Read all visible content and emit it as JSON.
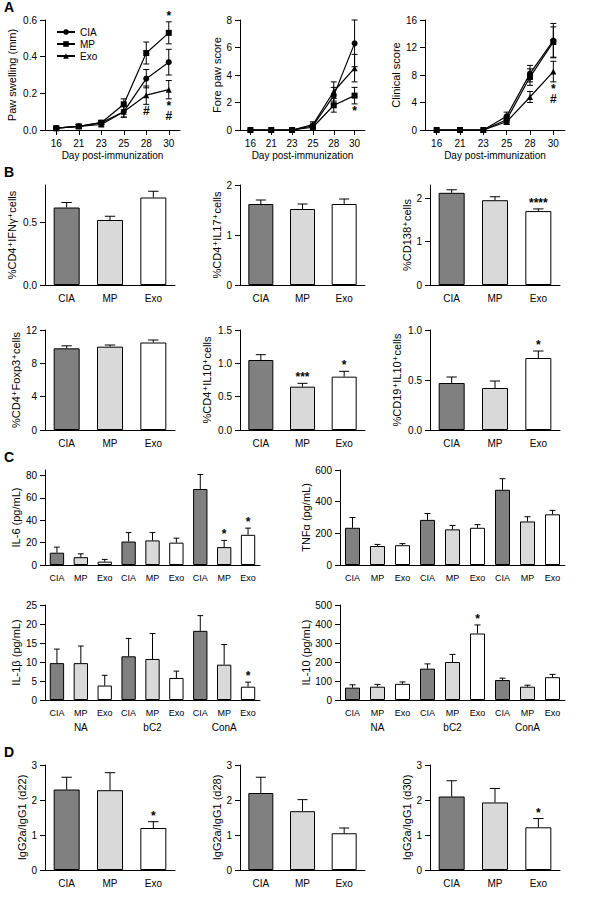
{
  "chart_data": [
    {
      "type": "line",
      "panel": "A",
      "y_label": "Paw swelling (mm)",
      "x_label": "Day post-immunization",
      "categories": [
        "16",
        "21",
        "23",
        "25",
        "28",
        "30"
      ],
      "ylim": [
        0,
        0.6
      ],
      "yticks": [
        {
          "value": 0,
          "label": "0.0"
        },
        0.2,
        0.4,
        0.6
      ],
      "grid": false,
      "legend": "top-left",
      "series": [
        {
          "name": "CIA",
          "color": "#000000",
          "marker": "circle",
          "line_style": "solid",
          "values": [
            0.01,
            0.02,
            0.04,
            0.1,
            0.28,
            0.37
          ],
          "errors": [
            0.005,
            0.01,
            0.01,
            0.03,
            0.05,
            0.07
          ],
          "sig": [
            null,
            null,
            null,
            null,
            null,
            null
          ]
        },
        {
          "name": "MP",
          "color": "#000000",
          "marker": "square",
          "line_style": "solid",
          "values": [
            0.01,
            0.02,
            0.04,
            0.14,
            0.42,
            0.53
          ],
          "errors": [
            0.01,
            0.01,
            0.01,
            0.03,
            0.06,
            0.06
          ],
          "sig": [
            null,
            null,
            null,
            null,
            null,
            "*"
          ]
        },
        {
          "name": "Exo",
          "color": "#000000",
          "marker": "triangle",
          "line_style": "solid",
          "values": [
            0.01,
            0.02,
            0.03,
            0.1,
            0.19,
            0.22
          ],
          "errors": [
            0.005,
            0.01,
            0.01,
            0.03,
            0.05,
            0.05
          ],
          "sig": [
            null,
            null,
            null,
            null,
            "#",
            [
              "*",
              "#"
            ]
          ]
        }
      ]
    },
    {
      "type": "line",
      "y_label": "Fore paw score",
      "x_label": "Day post-immunization",
      "categories": [
        "16",
        "21",
        "23",
        "25",
        "28",
        "30"
      ],
      "ylim": [
        0,
        8
      ],
      "yticks": [
        0,
        2,
        4,
        6,
        8
      ],
      "grid": false,
      "series": [
        {
          "name": "CIA",
          "color": "#000000",
          "marker": "circle",
          "line_style": "solid",
          "values": [
            0,
            0,
            0,
            0.3,
            2.5,
            6.3
          ],
          "errors": [
            0,
            0,
            0,
            0.2,
            0.6,
            1.7
          ],
          "sig": [
            null,
            null,
            null,
            null,
            null,
            null
          ]
        },
        {
          "name": "MP",
          "color": "#000000",
          "marker": "square",
          "line_style": "solid",
          "values": [
            0,
            0,
            0,
            0.2,
            1.8,
            2.5
          ],
          "errors": [
            0,
            0,
            0,
            0.2,
            0.5,
            0.6
          ],
          "sig": [
            null,
            null,
            null,
            null,
            null,
            "*"
          ]
        },
        {
          "name": "Exo",
          "color": "#000000",
          "marker": "triangle",
          "line_style": "solid",
          "values": [
            0,
            0,
            0,
            0.4,
            2.8,
            4.5
          ],
          "errors": [
            0,
            0,
            0,
            0.2,
            0.7,
            1.0
          ],
          "sig": [
            null,
            null,
            null,
            null,
            null,
            null
          ]
        }
      ]
    },
    {
      "type": "line",
      "y_label": "Clinical score",
      "x_label": "Day post-immunization",
      "categories": [
        "16",
        "21",
        "23",
        "25",
        "28",
        "30"
      ],
      "ylim": [
        0,
        16
      ],
      "yticks": [
        0,
        4,
        8,
        12,
        16
      ],
      "grid": false,
      "series": [
        {
          "name": "CIA",
          "color": "#000000",
          "marker": "circle",
          "line_style": "solid",
          "values": [
            0,
            0,
            0,
            2,
            8.2,
            13
          ],
          "errors": [
            0,
            0,
            0,
            0.6,
            1.2,
            2.5
          ],
          "sig": [
            null,
            null,
            null,
            null,
            null,
            null
          ]
        },
        {
          "name": "MP",
          "color": "#000000",
          "marker": "square",
          "line_style": "solid",
          "values": [
            0,
            0,
            0,
            1.5,
            7.7,
            12.8
          ],
          "errors": [
            0,
            0,
            0,
            0.5,
            1.2,
            2.2
          ],
          "sig": [
            null,
            null,
            null,
            null,
            null,
            null
          ]
        },
        {
          "name": "Exo",
          "color": "#000000",
          "marker": "triangle",
          "line_style": "solid",
          "values": [
            0,
            0,
            0,
            1.2,
            4.8,
            8.5
          ],
          "errors": [
            0,
            0,
            0,
            0.4,
            0.8,
            1.5
          ],
          "sig": [
            null,
            null,
            null,
            null,
            null,
            [
              "*",
              "#"
            ]
          ]
        }
      ]
    },
    {
      "type": "bar",
      "panel": "B",
      "y_label": "%CD4⁺IFNγ⁺cells",
      "categories": [
        "CIA",
        "MP",
        "Exo"
      ],
      "colors": [
        "#808080",
        "#d9d9d9",
        "#ffffff"
      ],
      "values": [
        0.62,
        0.52,
        0.7
      ],
      "errors": [
        0.04,
        0.03,
        0.05
      ],
      "sig": [
        null,
        null,
        null
      ],
      "ylim": [
        0,
        0.8
      ],
      "yticks": [
        {
          "value": 0,
          "label": "0.0"
        },
        0.5
      ],
      "grid": false
    },
    {
      "type": "bar",
      "y_label": "%CD4⁺IL17⁺cells",
      "categories": [
        "CIA",
        "MP",
        "Exo"
      ],
      "colors": [
        "#808080",
        "#d9d9d9",
        "#ffffff"
      ],
      "values": [
        1.62,
        1.52,
        1.62
      ],
      "errors": [
        0.08,
        0.1,
        0.1
      ],
      "sig": [
        null,
        null,
        null
      ],
      "ylim": [
        0,
        2
      ],
      "yticks": [
        0,
        1,
        2
      ],
      "grid": false
    },
    {
      "type": "bar",
      "y_label": "%CD138⁺cells",
      "categories": [
        "CIA",
        "MP",
        "Exo"
      ],
      "colors": [
        "#808080",
        "#d9d9d9",
        "#ffffff"
      ],
      "values": [
        2.12,
        1.95,
        1.7
      ],
      "errors": [
        0.07,
        0.08,
        0.05
      ],
      "sig": [
        null,
        null,
        "****"
      ],
      "ylim": [
        0,
        2.3
      ],
      "yticks": [
        0,
        1,
        2
      ],
      "grid": false
    },
    {
      "type": "bar",
      "y_label": "%CD4⁺Foxp3⁺cells",
      "categories": [
        "CIA",
        "MP",
        "Exo"
      ],
      "colors": [
        "#808080",
        "#d9d9d9",
        "#ffffff"
      ],
      "values": [
        9.8,
        10.0,
        10.5
      ],
      "errors": [
        0.3,
        0.2,
        0.3
      ],
      "sig": [
        null,
        null,
        null
      ],
      "ylim": [
        0,
        12
      ],
      "yticks": [
        0,
        4,
        8,
        12
      ],
      "grid": false
    },
    {
      "type": "bar",
      "y_label": "%CD4⁺IL10⁺cells",
      "categories": [
        "CIA",
        "MP",
        "Exo"
      ],
      "colors": [
        "#808080",
        "#d9d9d9",
        "#ffffff"
      ],
      "values": [
        1.05,
        0.65,
        0.8
      ],
      "errors": [
        0.08,
        0.05,
        0.08
      ],
      "sig": [
        null,
        "***",
        "*"
      ],
      "ylim": [
        0,
        1.5
      ],
      "yticks": [
        {
          "value": 0,
          "label": "0.0"
        },
        0.5,
        {
          "value": 1,
          "label": "1.0"
        },
        1.5
      ],
      "grid": false
    },
    {
      "type": "bar",
      "y_label": "%CD19⁺IL10⁺cells",
      "categories": [
        "CIA",
        "MP",
        "Exo"
      ],
      "colors": [
        "#808080",
        "#d9d9d9",
        "#ffffff"
      ],
      "values": [
        0.47,
        0.42,
        0.72
      ],
      "errors": [
        0.06,
        0.07,
        0.07
      ],
      "sig": [
        null,
        null,
        "*"
      ],
      "ylim": [
        0,
        1
      ],
      "yticks": [
        {
          "value": 0,
          "label": "0.0"
        },
        0.5,
        {
          "value": 1,
          "label": "1.0"
        }
      ],
      "grid": false
    },
    {
      "type": "bar",
      "panel": "C",
      "y_label": "IL-6 (pg/mL)",
      "categories": [
        "CIA",
        "MP",
        "Exo",
        "CIA",
        "MP",
        "Exo",
        "CIA",
        "MP",
        "Exo"
      ],
      "colors": [
        "#808080",
        "#d9d9d9",
        "#ffffff",
        "#808080",
        "#d9d9d9",
        "#ffffff",
        "#808080",
        "#d9d9d9",
        "#ffffff"
      ],
      "values": [
        11,
        7,
        3,
        21,
        22,
        20,
        68,
        16,
        27
      ],
      "errors": [
        5,
        3,
        2,
        8,
        7,
        4,
        13,
        6,
        6
      ],
      "sig": [
        null,
        null,
        null,
        null,
        null,
        null,
        null,
        "*",
        "*"
      ],
      "ylim": [
        0,
        85
      ],
      "yticks": [
        0,
        20,
        40,
        60,
        80
      ],
      "grid": false
    },
    {
      "type": "bar",
      "y_label": "TNFα (pg/mL)",
      "categories": [
        "CIA",
        "MP",
        "Exo",
        "CIA",
        "MP",
        "Exo",
        "CIA",
        "MP",
        "Exo"
      ],
      "colors": [
        "#808080",
        "#d9d9d9",
        "#ffffff",
        "#808080",
        "#d9d9d9",
        "#ffffff",
        "#808080",
        "#d9d9d9",
        "#ffffff"
      ],
      "values": [
        235,
        120,
        125,
        285,
        225,
        235,
        475,
        275,
        320
      ],
      "errors": [
        65,
        10,
        10,
        40,
        25,
        20,
        70,
        30,
        25
      ],
      "sig": [
        null,
        null,
        null,
        null,
        null,
        null,
        null,
        null,
        null
      ],
      "ylim": [
        0,
        600
      ],
      "yticks": [
        0,
        200,
        400,
        600
      ],
      "grid": false
    },
    {
      "type": "bar",
      "y_label": "IL-1β (pg/mL)",
      "categories": [
        "CIA",
        "MP",
        "Exo",
        "CIA",
        "MP",
        "Exo",
        "CIA",
        "MP",
        "Exo"
      ],
      "groups": [
        "NA",
        "bC2",
        "ConA"
      ],
      "colors": [
        "#808080",
        "#d9d9d9",
        "#ffffff",
        "#808080",
        "#d9d9d9",
        "#ffffff",
        "#808080",
        "#d9d9d9",
        "#ffffff"
      ],
      "values": [
        9.7,
        9.7,
        3.8,
        11.5,
        10.8,
        5.8,
        18.2,
        9.3,
        3.5
      ],
      "errors": [
        3.7,
        4.5,
        2.7,
        4.7,
        6.7,
        1.8,
        4,
        5.3,
        1.2
      ],
      "sig": [
        null,
        null,
        null,
        null,
        null,
        null,
        null,
        null,
        "*"
      ],
      "ylim": [
        0,
        25
      ],
      "yticks": [
        0,
        5,
        10,
        15,
        20,
        25
      ],
      "grid": false
    },
    {
      "type": "bar",
      "y_label": "IL-10 (pg/mL)",
      "categories": [
        "CIA",
        "MP",
        "Exo",
        "CIA",
        "MP",
        "Exo",
        "CIA",
        "MP",
        "Exo"
      ],
      "groups": [
        "NA",
        "bC2",
        "ConA"
      ],
      "colors": [
        "#808080",
        "#d9d9d9",
        "#ffffff",
        "#808080",
        "#d9d9d9",
        "#ffffff",
        "#808080",
        "#d9d9d9",
        "#ffffff"
      ],
      "values": [
        65,
        70,
        85,
        165,
        200,
        350,
        105,
        70,
        120
      ],
      "errors": [
        15,
        12,
        10,
        25,
        40,
        45,
        10,
        8,
        15
      ],
      "sig": [
        null,
        null,
        null,
        null,
        null,
        "*",
        null,
        null,
        null
      ],
      "ylim": [
        0,
        500
      ],
      "yticks": [
        0,
        100,
        200,
        300,
        400,
        500
      ],
      "grid": false
    },
    {
      "type": "bar",
      "panel": "D",
      "y_label": "IgG2a/IgG1 (d22)",
      "categories": [
        "CIA",
        "MP",
        "Exo"
      ],
      "colors": [
        "#808080",
        "#d9d9d9",
        "#ffffff"
      ],
      "values": [
        2.3,
        2.28,
        1.2
      ],
      "errors": [
        0.35,
        0.5,
        0.18
      ],
      "sig": [
        null,
        null,
        "*"
      ],
      "ylim": [
        0,
        3
      ],
      "yticks": [
        0,
        1,
        2,
        3
      ],
      "grid": false
    },
    {
      "type": "bar",
      "y_label": "IgG2a/IgG1 (d28)",
      "categories": [
        "CIA",
        "MP",
        "Exo"
      ],
      "colors": [
        "#808080",
        "#d9d9d9",
        "#ffffff"
      ],
      "values": [
        2.2,
        1.68,
        1.05
      ],
      "errors": [
        0.45,
        0.33,
        0.15
      ],
      "sig": [
        null,
        null,
        null
      ],
      "ylim": [
        0,
        3
      ],
      "yticks": [
        0,
        1,
        2,
        3
      ],
      "grid": false
    },
    {
      "type": "bar",
      "y_label": "IgG2a/IgG1 (d30)",
      "categories": [
        "CIA",
        "MP",
        "Exo"
      ],
      "colors": [
        "#808080",
        "#d9d9d9",
        "#ffffff"
      ],
      "values": [
        2.1,
        1.93,
        1.22
      ],
      "errors": [
        0.45,
        0.4,
        0.25
      ],
      "sig": [
        null,
        null,
        "*"
      ],
      "ylim": [
        0,
        3
      ],
      "yticks": [
        0,
        1,
        2,
        3
      ],
      "grid": false
    }
  ]
}
